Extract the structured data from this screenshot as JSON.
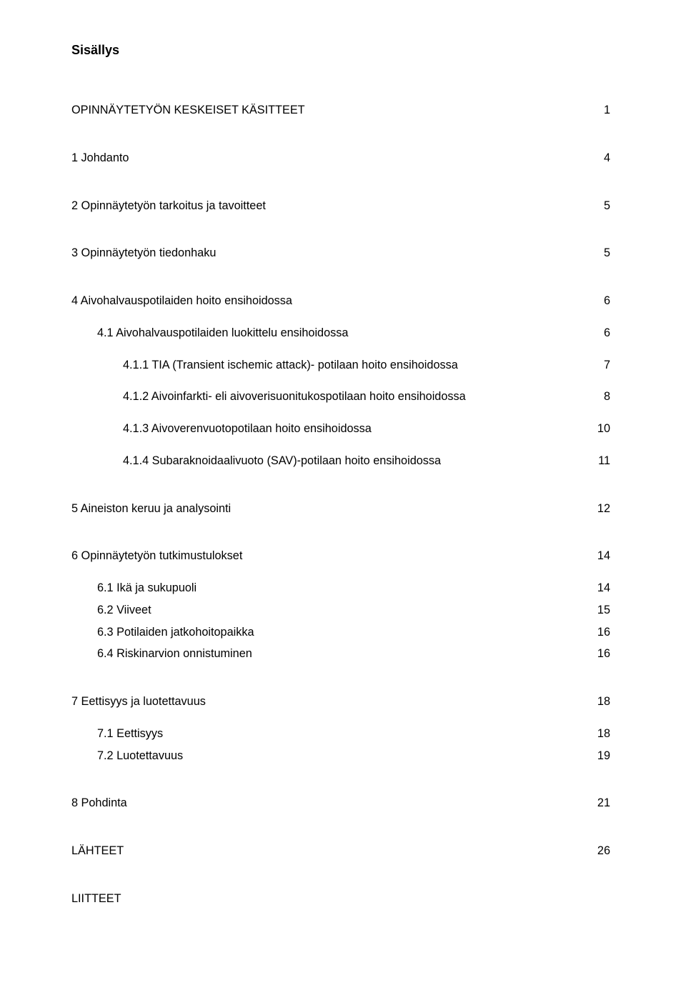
{
  "title": "Sisällys",
  "toc": [
    {
      "label": "OPINNÄYTETYÖN KESKEISET KÄSITTEET",
      "page": "1",
      "level": 0,
      "spaceBefore": "none",
      "spaceAfter": "lg"
    },
    {
      "label": "1   Johdanto",
      "page": "4",
      "level": 0,
      "spaceAfter": "lg"
    },
    {
      "label": "2   Opinnäytetyön tarkoitus ja tavoitteet",
      "page": "5",
      "level": 0,
      "spaceAfter": "lg"
    },
    {
      "label": "3   Opinnäytetyön tiedonhaku",
      "page": "5",
      "level": 0,
      "spaceAfter": "lg"
    },
    {
      "label": "4   Aivohalvauspotilaiden hoito ensihoidossa",
      "page": "6",
      "level": 0,
      "spaceAfter": "md"
    },
    {
      "label": "4.1  Aivohalvauspotilaiden luokittelu ensihoidossa",
      "page": "6",
      "level": 1,
      "spaceAfter": "md"
    },
    {
      "label": "4.1.1    TIA (Transient ischemic attack)- potilaan hoito ensihoidossa",
      "page": "7",
      "level": 2,
      "spaceAfter": "md"
    },
    {
      "label": "4.1.2    Aivoinfarkti- eli aivoverisuonitukospotilaan hoito ensihoidossa",
      "page": "8",
      "level": 2,
      "spaceAfter": "md"
    },
    {
      "label": "4.1.3    Aivoverenvuotopotilaan hoito ensihoidossa",
      "page": "10",
      "level": 2,
      "spaceAfter": "md"
    },
    {
      "label": "4.1.4    Subaraknoidaalivuoto (SAV)-potilaan hoito ensihoidossa",
      "page": "11",
      "level": 2,
      "spaceAfter": "lg"
    },
    {
      "label": "5   Aineiston keruu ja analysointi",
      "page": "12",
      "level": 0,
      "spaceAfter": "lg"
    },
    {
      "label": "6   Opinnäytetyön tutkimustulokset",
      "page": "14",
      "level": 0,
      "spaceAfter": "md"
    },
    {
      "label": "6.1  Ikä ja sukupuoli",
      "page": "14",
      "level": 1,
      "spaceAfter": "sm"
    },
    {
      "label": "6.2  Viiveet",
      "page": "15",
      "level": 1,
      "spaceAfter": "sm"
    },
    {
      "label": "6.3  Potilaiden jatkohoitopaikka",
      "page": "16",
      "level": 1,
      "spaceAfter": "sm"
    },
    {
      "label": "6.4  Riskinarvion onnistuminen",
      "page": "16",
      "level": 1,
      "spaceAfter": "lg"
    },
    {
      "label": "7   Eettisyys ja luotettavuus",
      "page": "18",
      "level": 0,
      "spaceAfter": "md"
    },
    {
      "label": "7.1  Eettisyys",
      "page": "18",
      "level": 1,
      "spaceAfter": "sm"
    },
    {
      "label": "7.2  Luotettavuus",
      "page": "19",
      "level": 1,
      "spaceAfter": "lg"
    },
    {
      "label": "8   Pohdinta",
      "page": "21",
      "level": 0,
      "spaceAfter": "lg"
    },
    {
      "label": "LÄHTEET",
      "page": "26",
      "level": 0,
      "spaceAfter": "lg"
    },
    {
      "label": "LIITTEET",
      "page": "",
      "level": 0,
      "spaceAfter": "none"
    }
  ]
}
